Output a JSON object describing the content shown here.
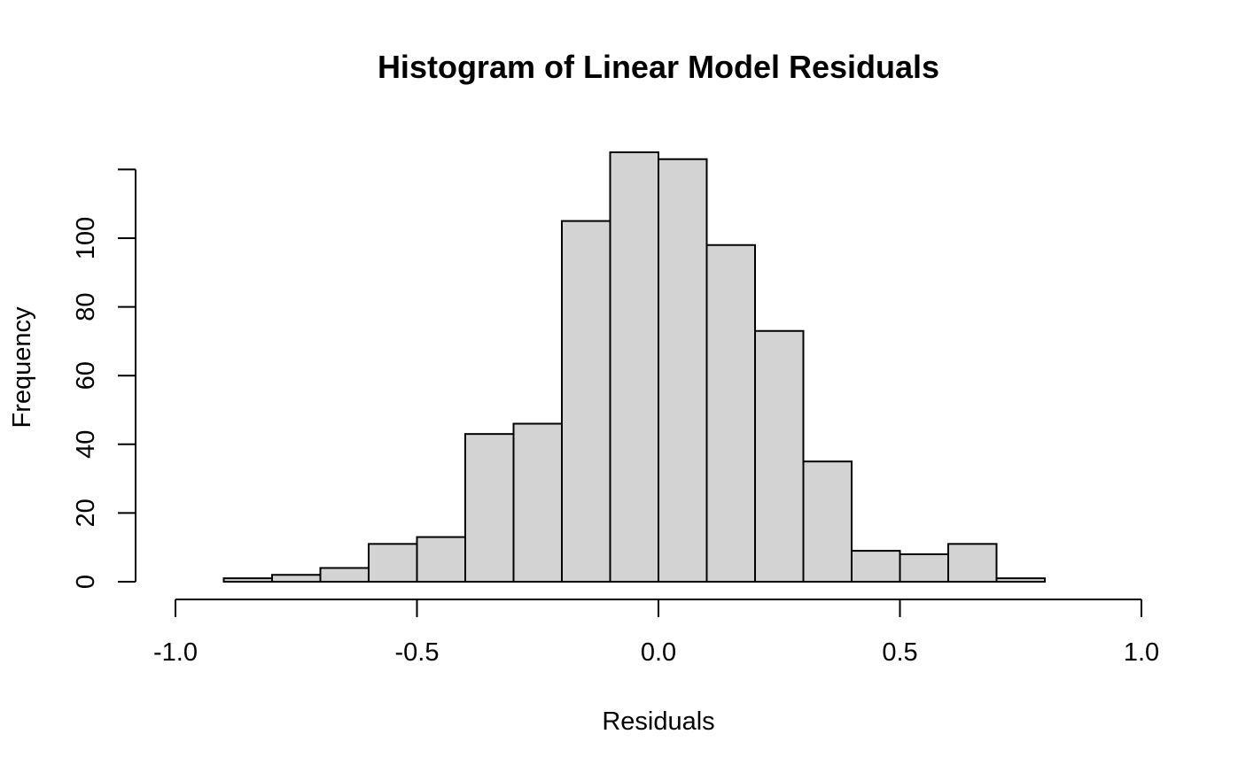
{
  "chart_data": {
    "type": "bar",
    "title": "Histogram of Linear Model Residuals",
    "xlabel": "Residuals",
    "ylabel": "Frequency",
    "bar_color": "#d3d3d3",
    "border_color": "#000000",
    "xlim": [
      -1.0,
      1.0
    ],
    "ylim": [
      0,
      120
    ],
    "xticks": [
      -1.0,
      -0.5,
      0.0,
      0.5,
      1.0
    ],
    "xtick_labels": [
      "-1.0",
      "-0.5",
      "0.0",
      "0.5",
      "1.0"
    ],
    "yticks": [
      0,
      20,
      40,
      60,
      80,
      100
    ],
    "ytick_labels": [
      "0",
      "20",
      "40",
      "60",
      "80",
      "100"
    ],
    "bins": [
      {
        "x0": -0.9,
        "x1": -0.8,
        "count": 1
      },
      {
        "x0": -0.8,
        "x1": -0.7,
        "count": 2
      },
      {
        "x0": -0.7,
        "x1": -0.6,
        "count": 4
      },
      {
        "x0": -0.6,
        "x1": -0.5,
        "count": 11
      },
      {
        "x0": -0.5,
        "x1": -0.4,
        "count": 13
      },
      {
        "x0": -0.4,
        "x1": -0.3,
        "count": 43
      },
      {
        "x0": -0.3,
        "x1": -0.2,
        "count": 46
      },
      {
        "x0": -0.2,
        "x1": -0.1,
        "count": 105
      },
      {
        "x0": -0.1,
        "x1": 0.0,
        "count": 125
      },
      {
        "x0": 0.0,
        "x1": 0.1,
        "count": 123
      },
      {
        "x0": 0.1,
        "x1": 0.2,
        "count": 98
      },
      {
        "x0": 0.2,
        "x1": 0.3,
        "count": 73
      },
      {
        "x0": 0.3,
        "x1": 0.4,
        "count": 35
      },
      {
        "x0": 0.4,
        "x1": 0.5,
        "count": 9
      },
      {
        "x0": 0.5,
        "x1": 0.6,
        "count": 8
      },
      {
        "x0": 0.6,
        "x1": 0.7,
        "count": 11
      },
      {
        "x0": 0.7,
        "x1": 0.8,
        "count": 1
      }
    ]
  }
}
